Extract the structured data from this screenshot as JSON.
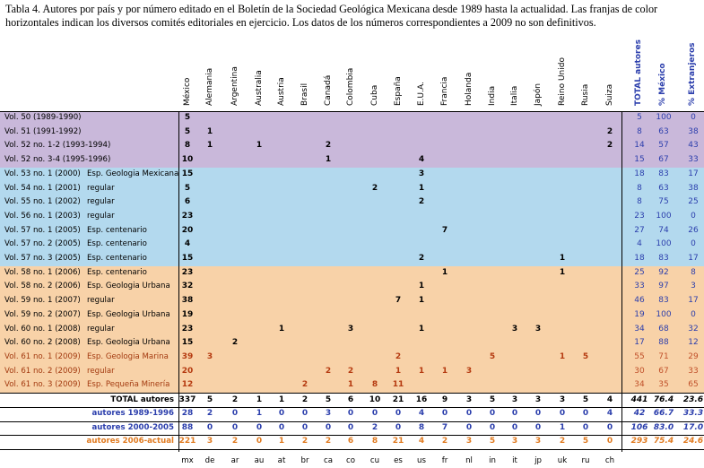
{
  "caption": "Tabla 4. Autores por país y por número editado en el Boletín de la Sociedad Geológica Mexicana desde 1989 hasta la actualidad. Las franjas de color horizontales indican los diversos comités editoriales en ejercicio. Los datos de los números correspondientes a 2009 no son definitivos.",
  "columns": [
    "México",
    "Alemania",
    "Argentina",
    "Australia",
    "Austria",
    "Brasil",
    "Canadá",
    "Colombia",
    "Cuba",
    "España",
    "E.U.A.",
    "Francia",
    "Holanda",
    "India",
    "Italia",
    "Japón",
    "Reino Unido",
    "Rusia",
    "Suiza"
  ],
  "summary_columns": [
    "TOTAL autores",
    "% México",
    "% Extranjeros"
  ],
  "colors": {
    "band1": "#c9b8da",
    "band2": "#b3d9ee",
    "band3": "#f8d2a8",
    "blue_text": "#2b3eac",
    "late_text": "#a33a10"
  },
  "rows": [
    {
      "label": "Vol. 50 (1989-1990)",
      "type": "",
      "vals": [
        "5",
        "",
        "",
        "",
        "",
        "",
        "",
        "",
        "",
        "",
        "",
        "",
        "",
        "",
        "",
        "",
        "",
        "",
        ""
      ],
      "sum": [
        "5",
        "100",
        "0"
      ]
    },
    {
      "label": "Vol. 51 (1991-1992)",
      "type": "",
      "vals": [
        "5",
        "1",
        "",
        "",
        "",
        "",
        "",
        "",
        "",
        "",
        "",
        "",
        "",
        "",
        "",
        "",
        "",
        "",
        "2"
      ],
      "sum": [
        "8",
        "63",
        "38"
      ]
    },
    {
      "label": "Vol. 52 no. 1-2 (1993-1994)",
      "type": "",
      "vals": [
        "8",
        "1",
        "",
        "1",
        "",
        "",
        "2",
        "",
        "",
        "",
        "",
        "",
        "",
        "",
        "",
        "",
        "",
        "",
        "2"
      ],
      "sum": [
        "14",
        "57",
        "43"
      ]
    },
    {
      "label": "Vol. 52 no. 3-4 (1995-1996)",
      "type": "",
      "vals": [
        "10",
        "",
        "",
        "",
        "",
        "",
        "1",
        "",
        "",
        "",
        "4",
        "",
        "",
        "",
        "",
        "",
        "",
        "",
        ""
      ],
      "sum": [
        "15",
        "67",
        "33"
      ]
    },
    {
      "label": "Vol. 53 no. 1 (2000)",
      "type": "Esp. Geologia Mexicana",
      "vals": [
        "15",
        "",
        "",
        "",
        "",
        "",
        "",
        "",
        "",
        "",
        "3",
        "",
        "",
        "",
        "",
        "",
        "",
        "",
        ""
      ],
      "sum": [
        "18",
        "83",
        "17"
      ]
    },
    {
      "label": "Vol. 54 no. 1 (2001)",
      "type": "regular",
      "vals": [
        "5",
        "",
        "",
        "",
        "",
        "",
        "",
        "",
        "2",
        "",
        "1",
        "",
        "",
        "",
        "",
        "",
        "",
        "",
        ""
      ],
      "sum": [
        "8",
        "63",
        "38"
      ]
    },
    {
      "label": "Vol. 55 no. 1 (2002)",
      "type": "regular",
      "vals": [
        "6",
        "",
        "",
        "",
        "",
        "",
        "",
        "",
        "",
        "",
        "2",
        "",
        "",
        "",
        "",
        "",
        "",
        "",
        ""
      ],
      "sum": [
        "8",
        "75",
        "25"
      ]
    },
    {
      "label": "Vol. 56 no. 1 (2003)",
      "type": "regular",
      "vals": [
        "23",
        "",
        "",
        "",
        "",
        "",
        "",
        "",
        "",
        "",
        "",
        "",
        "",
        "",
        "",
        "",
        "",
        "",
        ""
      ],
      "sum": [
        "23",
        "100",
        "0"
      ]
    },
    {
      "label": "Vol. 57 no. 1 (2005)",
      "type": "Esp. centenario",
      "vals": [
        "20",
        "",
        "",
        "",
        "",
        "",
        "",
        "",
        "",
        "",
        "",
        "7",
        "",
        "",
        "",
        "",
        "",
        "",
        ""
      ],
      "sum": [
        "27",
        "74",
        "26"
      ]
    },
    {
      "label": "Vol. 57 no. 2 (2005)",
      "type": "Esp. centenario",
      "vals": [
        "4",
        "",
        "",
        "",
        "",
        "",
        "",
        "",
        "",
        "",
        "",
        "",
        "",
        "",
        "",
        "",
        "",
        "",
        ""
      ],
      "sum": [
        "4",
        "100",
        "0"
      ]
    },
    {
      "label": "Vol. 57 no. 3 (2005)",
      "type": "Esp. centenario",
      "vals": [
        "15",
        "",
        "",
        "",
        "",
        "",
        "",
        "",
        "",
        "",
        "2",
        "",
        "",
        "",
        "",
        "",
        "1",
        "",
        ""
      ],
      "sum": [
        "18",
        "83",
        "17"
      ]
    },
    {
      "label": "Vol. 58 no. 1 (2006)",
      "type": "Esp. centenario",
      "vals": [
        "23",
        "",
        "",
        "",
        "",
        "",
        "",
        "",
        "",
        "",
        "",
        "1",
        "",
        "",
        "",
        "",
        "1",
        "",
        ""
      ],
      "sum": [
        "25",
        "92",
        "8"
      ]
    },
    {
      "label": "Vol. 58 no. 2 (2006)",
      "type": "Esp. Geologia Urbana",
      "vals": [
        "32",
        "",
        "",
        "",
        "",
        "",
        "",
        "",
        "",
        "",
        "1",
        "",
        "",
        "",
        "",
        "",
        "",
        "",
        ""
      ],
      "sum": [
        "33",
        "97",
        "3"
      ]
    },
    {
      "label": "Vol. 59 no. 1 (2007)",
      "type": "regular",
      "vals": [
        "38",
        "",
        "",
        "",
        "",
        "",
        "",
        "",
        "",
        "7",
        "1",
        "",
        "",
        "",
        "",
        "",
        "",
        "",
        ""
      ],
      "sum": [
        "46",
        "83",
        "17"
      ]
    },
    {
      "label": "Vol. 59 no. 2 (2007)",
      "type": "Esp. Geologia Urbana",
      "vals": [
        "19",
        "",
        "",
        "",
        "",
        "",
        "",
        "",
        "",
        "",
        "",
        "",
        "",
        "",
        "",
        "",
        "",
        "",
        ""
      ],
      "sum": [
        "19",
        "100",
        "0"
      ]
    },
    {
      "label": "Vol. 60 no. 1 (2008)",
      "type": "regular",
      "vals": [
        "23",
        "",
        "",
        "",
        "1",
        "",
        "",
        "3",
        "",
        "",
        "1",
        "",
        "",
        "",
        "3",
        "3",
        "",
        "",
        ""
      ],
      "sum": [
        "34",
        "68",
        "32"
      ]
    },
    {
      "label": "Vol. 60 no. 2 (2008)",
      "type": "Esp. Geologia Urbana",
      "vals": [
        "15",
        "",
        "2",
        "",
        "",
        "",
        "",
        "",
        "",
        "",
        "",
        "",
        "",
        "",
        "",
        "",
        "",
        "",
        ""
      ],
      "sum": [
        "17",
        "88",
        "12"
      ]
    },
    {
      "label": "Vol. 61 no. 1 (2009)",
      "type": "Esp. Geologia Marina",
      "vals": [
        "39",
        "3",
        "",
        "",
        "",
        "",
        "",
        "",
        "",
        "2",
        "",
        "",
        "",
        "5",
        "",
        "",
        "1",
        "5",
        ""
      ],
      "sum": [
        "55",
        "71",
        "29"
      ]
    },
    {
      "label": "Vol. 61 no. 2 (2009)",
      "type": "regular",
      "vals": [
        "20",
        "",
        "",
        "",
        "",
        "",
        "2",
        "2",
        "",
        "1",
        "1",
        "1",
        "3",
        "",
        "",
        "",
        "",
        "",
        ""
      ],
      "sum": [
        "30",
        "67",
        "33"
      ]
    },
    {
      "label": "Vol. 61 no. 3 (2009)",
      "type": "Esp. Pequeña Minería",
      "vals": [
        "12",
        "",
        "",
        "",
        "",
        "2",
        "",
        "1",
        "8",
        "11",
        "",
        "",
        "",
        "",
        "",
        "",
        "",
        "",
        ""
      ],
      "sum": [
        "34",
        "35",
        "65"
      ]
    }
  ],
  "totals": [
    {
      "label": "TOTAL autores",
      "vals": [
        "337",
        "5",
        "2",
        "1",
        "1",
        "2",
        "5",
        "6",
        "10",
        "21",
        "16",
        "9",
        "3",
        "5",
        "3",
        "3",
        "3",
        "5",
        "4"
      ],
      "sum": [
        "441",
        "76.4",
        "23.6"
      ],
      "color": "#000000"
    },
    {
      "label": "autores 1989-1996",
      "vals": [
        "28",
        "2",
        "0",
        "1",
        "0",
        "0",
        "3",
        "0",
        "0",
        "0",
        "4",
        "0",
        "0",
        "0",
        "0",
        "0",
        "0",
        "0",
        "4"
      ],
      "sum": [
        "42",
        "66.7",
        "33.3"
      ],
      "color": "#2b3eac"
    },
    {
      "label": "autores 2000-2005",
      "vals": [
        "88",
        "0",
        "0",
        "0",
        "0",
        "0",
        "0",
        "0",
        "2",
        "0",
        "8",
        "7",
        "0",
        "0",
        "0",
        "0",
        "1",
        "0",
        "0"
      ],
      "sum": [
        "106",
        "83.0",
        "17.0"
      ],
      "color": "#2b3eac"
    },
    {
      "label": "autores 2006-actual",
      "vals": [
        "221",
        "3",
        "2",
        "0",
        "1",
        "2",
        "2",
        "6",
        "8",
        "21",
        "4",
        "2",
        "3",
        "5",
        "3",
        "3",
        "2",
        "5",
        "0"
      ],
      "sum": [
        "293",
        "75.4",
        "24.6"
      ],
      "color": "#e07a20"
    }
  ],
  "codes": [
    "mx",
    "de",
    "ar",
    "au",
    "at",
    "br",
    "ca",
    "co",
    "cu",
    "es",
    "us",
    "fr",
    "nl",
    "in",
    "it",
    "jp",
    "uk",
    "ru",
    "ch"
  ]
}
